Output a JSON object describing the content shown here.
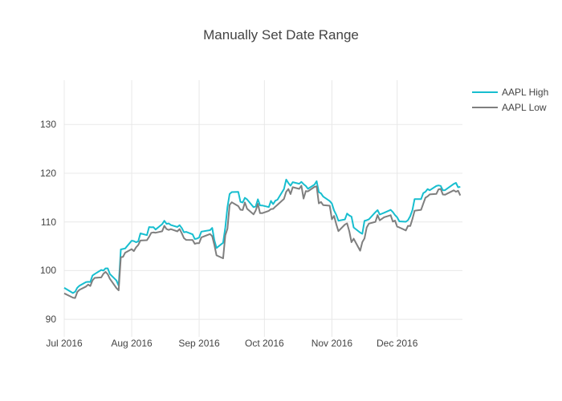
{
  "chart_data": {
    "type": "line",
    "title": "Manually Set Date Range",
    "xlabel": "",
    "ylabel": "",
    "grid": true,
    "grid_color": "#e8e8e8",
    "bg_color": "#ffffff",
    "text_color": "#444444",
    "legend_position": "top-right",
    "line_width": 2,
    "xaxis": {
      "range": [
        "2016-07-01",
        "2016-12-31"
      ],
      "tick_dates": [
        "2016-07-01",
        "2016-08-01",
        "2016-09-01",
        "2016-10-01",
        "2016-11-01",
        "2016-12-01"
      ],
      "tick_labels": [
        "Jul 2016",
        "Aug 2016",
        "Sep 2016",
        "Oct 2016",
        "Nov 2016",
        "Dec 2016"
      ]
    },
    "yaxis": {
      "range": [
        86.4,
        139.1
      ],
      "ticks": [
        90,
        100,
        110,
        120,
        130
      ]
    },
    "dates": [
      "2016-07-01",
      "2016-07-05",
      "2016-07-06",
      "2016-07-07",
      "2016-07-08",
      "2016-07-11",
      "2016-07-12",
      "2016-07-13",
      "2016-07-14",
      "2016-07-15",
      "2016-07-18",
      "2016-07-19",
      "2016-07-20",
      "2016-07-21",
      "2016-07-22",
      "2016-07-25",
      "2016-07-26",
      "2016-07-27",
      "2016-07-28",
      "2016-07-29",
      "2016-08-01",
      "2016-08-02",
      "2016-08-03",
      "2016-08-04",
      "2016-08-05",
      "2016-08-08",
      "2016-08-09",
      "2016-08-10",
      "2016-08-11",
      "2016-08-12",
      "2016-08-15",
      "2016-08-16",
      "2016-08-17",
      "2016-08-18",
      "2016-08-19",
      "2016-08-22",
      "2016-08-23",
      "2016-08-24",
      "2016-08-25",
      "2016-08-26",
      "2016-08-29",
      "2016-08-30",
      "2016-08-31",
      "2016-09-01",
      "2016-09-02",
      "2016-09-06",
      "2016-09-07",
      "2016-09-08",
      "2016-09-09",
      "2016-09-12",
      "2016-09-13",
      "2016-09-14",
      "2016-09-15",
      "2016-09-16",
      "2016-09-19",
      "2016-09-20",
      "2016-09-21",
      "2016-09-22",
      "2016-09-23",
      "2016-09-26",
      "2016-09-27",
      "2016-09-28",
      "2016-09-29",
      "2016-09-30",
      "2016-10-03",
      "2016-10-04",
      "2016-10-05",
      "2016-10-06",
      "2016-10-07",
      "2016-10-10",
      "2016-10-11",
      "2016-10-12",
      "2016-10-13",
      "2016-10-14",
      "2016-10-17",
      "2016-10-18",
      "2016-10-19",
      "2016-10-20",
      "2016-10-21",
      "2016-10-24",
      "2016-10-25",
      "2016-10-26",
      "2016-10-27",
      "2016-10-28",
      "2016-10-31",
      "2016-11-01",
      "2016-11-02",
      "2016-11-03",
      "2016-11-04",
      "2016-11-07",
      "2016-11-08",
      "2016-11-09",
      "2016-11-10",
      "2016-11-11",
      "2016-11-14",
      "2016-11-15",
      "2016-11-16",
      "2016-11-17",
      "2016-11-18",
      "2016-11-21",
      "2016-11-22",
      "2016-11-23",
      "2016-11-25",
      "2016-11-28",
      "2016-11-29",
      "2016-11-30",
      "2016-12-01",
      "2016-12-02",
      "2016-12-05",
      "2016-12-06",
      "2016-12-07",
      "2016-12-08",
      "2016-12-09",
      "2016-12-12",
      "2016-12-13",
      "2016-12-14",
      "2016-12-15",
      "2016-12-16",
      "2016-12-19",
      "2016-12-20",
      "2016-12-21",
      "2016-12-22",
      "2016-12-23",
      "2016-12-27",
      "2016-12-28",
      "2016-12-29",
      "2016-12-30"
    ],
    "series": [
      {
        "name": "AAPL High",
        "color": "#17becf",
        "values": [
          96.47,
          95.4,
          95.66,
          96.5,
          96.89,
          97.65,
          97.7,
          97.67,
          98.99,
          99.3,
          100.13,
          100.0,
          100.46,
          100.47,
          99.3,
          97.97,
          96.91,
          104.35,
          104.45,
          104.55,
          106.15,
          106.07,
          105.84,
          106.0,
          107.65,
          107.29,
          108.94,
          108.9,
          108.93,
          108.44,
          109.54,
          110.23,
          109.6,
          109.69,
          109.36,
          108.97,
          109.32,
          108.75,
          107.88,
          107.95,
          107.44,
          106.5,
          106.57,
          106.8,
          108.0,
          108.3,
          108.76,
          106.25,
          104.64,
          105.72,
          108.79,
          113.03,
          115.73,
          116.13,
          116.18,
          114.12,
          113.99,
          114.94,
          114.62,
          113.03,
          113.18,
          114.64,
          113.39,
          113.37,
          113.05,
          114.31,
          113.66,
          114.34,
          114.56,
          116.75,
          118.69,
          117.98,
          117.44,
          118.17,
          117.84,
          118.21,
          117.76,
          117.38,
          116.8,
          117.65,
          118.36,
          116.13,
          115.86,
          115.21,
          114.28,
          113.77,
          112.35,
          111.46,
          110.25,
          110.51,
          111.72,
          111.32,
          111.09,
          108.87,
          107.81,
          107.57,
          110.23,
          110.35,
          110.54,
          111.99,
          112.42,
          111.51,
          111.87,
          112.47,
          112.03,
          111.4,
          110.94,
          110.12,
          110.03,
          110.36,
          111.19,
          112.43,
          114.7,
          114.7,
          115.92,
          116.2,
          116.73,
          116.5,
          117.38,
          117.5,
          117.4,
          116.51,
          116.52,
          117.8,
          118.02,
          117.11,
          117.2
        ]
      },
      {
        "name": "AAPL Low",
        "color": "#7f7f7f",
        "values": [
          95.33,
          94.46,
          94.37,
          95.62,
          96.05,
          96.73,
          97.12,
          96.84,
          98.0,
          98.5,
          98.6,
          99.34,
          99.74,
          99.25,
          98.31,
          96.42,
          95.95,
          102.75,
          102.82,
          103.68,
          104.41,
          104.0,
          104.77,
          105.28,
          106.18,
          106.24,
          106.93,
          107.76,
          107.85,
          107.78,
          108.08,
          109.21,
          108.53,
          108.36,
          108.51,
          108.05,
          108.53,
          107.68,
          106.68,
          106.31,
          106.28,
          105.5,
          105.64,
          105.62,
          106.82,
          107.51,
          107.07,
          105.28,
          103.13,
          102.53,
          107.24,
          108.6,
          113.49,
          114.04,
          113.25,
          112.51,
          112.44,
          114.0,
          112.71,
          111.55,
          112.34,
          113.7,
          111.8,
          111.8,
          112.28,
          112.63,
          112.69,
          113.13,
          113.51,
          114.72,
          116.2,
          116.75,
          115.72,
          117.13,
          116.78,
          117.45,
          114.8,
          116.33,
          116.27,
          117.2,
          117.31,
          113.8,
          114.1,
          113.45,
          113.33,
          110.53,
          111.23,
          109.55,
          108.11,
          109.46,
          109.7,
          108.05,
          105.83,
          106.55,
          104.08,
          105.85,
          106.6,
          108.83,
          109.66,
          110.01,
          111.4,
          110.33,
          110.95,
          111.39,
          110.07,
          110.27,
          109.03,
          108.87,
          108.25,
          109.19,
          109.16,
          110.6,
          112.31,
          112.49,
          113.75,
          114.98,
          115.23,
          115.65,
          115.75,
          116.68,
          116.78,
          115.64,
          115.59,
          116.49,
          116.2,
          116.4,
          115.43
        ]
      }
    ]
  }
}
